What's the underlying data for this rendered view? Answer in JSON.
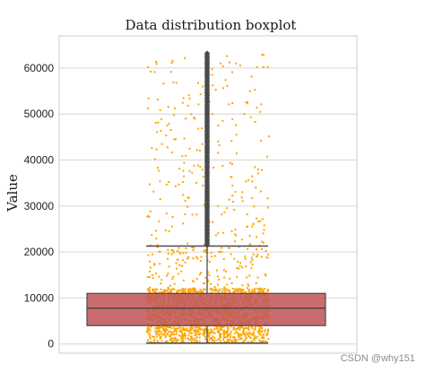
{
  "chart_data": {
    "type": "box",
    "title": "Data distribution boxplot",
    "xlabel": "",
    "ylabel": "Value",
    "ylim": [
      -2000,
      67000
    ],
    "yticks": [
      0,
      10000,
      20000,
      30000,
      40000,
      50000,
      60000
    ],
    "ytick_labels": [
      "0",
      "10000",
      "20000",
      "30000",
      "40000",
      "50000",
      "60000"
    ],
    "grid": "horizontal",
    "box": {
      "q1": 4000,
      "median": 7800,
      "q3": 11000,
      "whisker_low": 200,
      "whisker_high": 21300,
      "max_outlier": 63500
    },
    "scatter_overlay": {
      "description_range": [
        200,
        63500
      ],
      "dense_below": 12000
    },
    "colors": {
      "box_fill": "#c0585a",
      "box_edge": "#4a4a4a",
      "points": "#ffa500",
      "outliers": "#4a4a4a",
      "grid": "#d6d6d6",
      "axes_frame": "#cccccc"
    }
  },
  "watermark": "CSDN @why151"
}
